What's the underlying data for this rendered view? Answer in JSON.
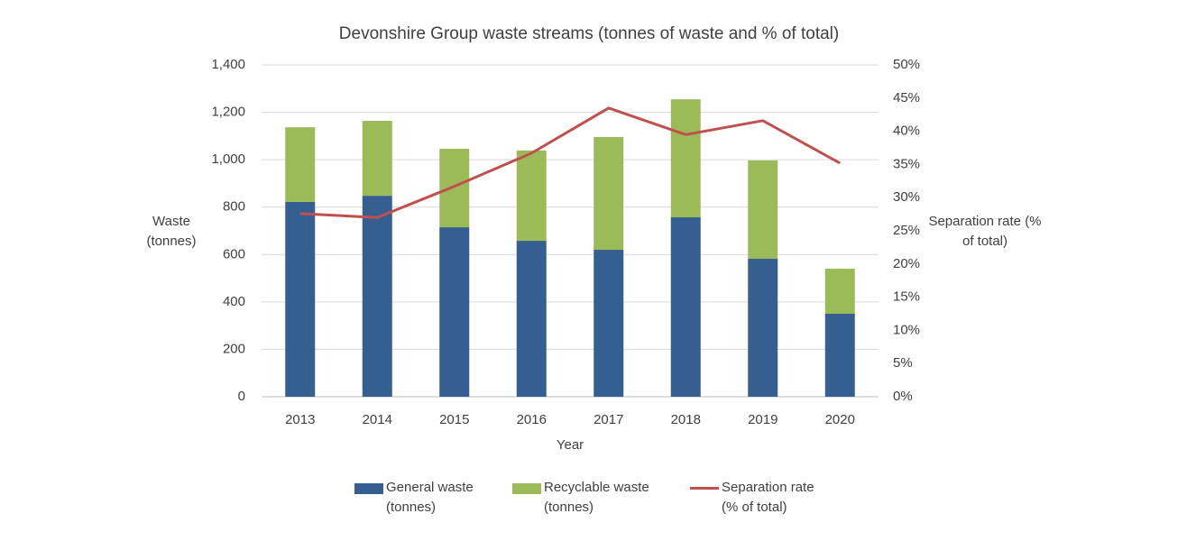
{
  "chart_data": {
    "type": "bar",
    "stacked": true,
    "title": "Devonshire Group waste streams (tonnes of waste and % of total)",
    "xlabel": "Year",
    "ylabel": "Waste (tonnes)",
    "y2label": "Separation rate (% of total)",
    "categories": [
      "2013",
      "2014",
      "2015",
      "2016",
      "2017",
      "2018",
      "2019",
      "2020"
    ],
    "series": [
      {
        "name": "General waste (tonnes)",
        "type": "bar",
        "color": "#365f91",
        "values": [
          822,
          848,
          715,
          658,
          620,
          757,
          582,
          350
        ]
      },
      {
        "name": "Recyclable waste (tonnes)",
        "type": "bar",
        "color": "#9bbb59",
        "values": [
          315,
          316,
          331,
          381,
          476,
          498,
          415,
          190
        ]
      },
      {
        "name": "Separation rate (% of total)",
        "type": "line",
        "axis": "y2",
        "color": "#c0504d",
        "values": [
          27.6,
          27.0,
          31.7,
          36.7,
          43.5,
          39.5,
          41.6,
          35.2
        ]
      }
    ],
    "ylim": [
      0,
      1400
    ],
    "yticks": [
      0,
      200,
      400,
      600,
      800,
      {
        "value": 1000,
        "label": "1,000"
      },
      {
        "value": 1200,
        "label": "1,200"
      },
      {
        "value": 1400,
        "label": "1,400"
      }
    ],
    "y2lim": [
      0,
      50
    ],
    "y2ticks": [
      {
        "value": 0,
        "label": "0%"
      },
      {
        "value": 5,
        "label": "5%"
      },
      {
        "value": 10,
        "label": "10%"
      },
      {
        "value": 15,
        "label": "15%"
      },
      {
        "value": 20,
        "label": "20%"
      },
      {
        "value": 25,
        "label": "25%"
      },
      {
        "value": 30,
        "label": "30%"
      },
      {
        "value": 35,
        "label": "35%"
      },
      {
        "value": 40,
        "label": "40%"
      },
      {
        "value": 45,
        "label": "45%"
      },
      {
        "value": 50,
        "label": "50%"
      }
    ],
    "grid": true,
    "legend": "bottom"
  }
}
